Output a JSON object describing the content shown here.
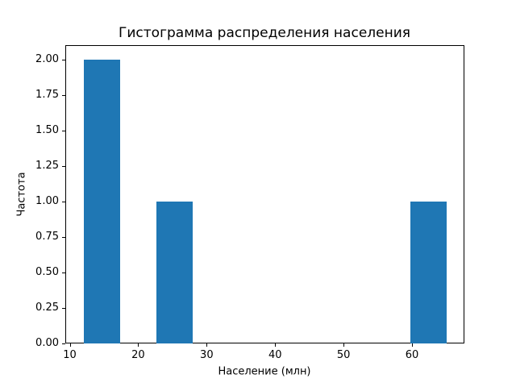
{
  "chart_data": {
    "type": "bar",
    "subtype": "histogram",
    "title": "Гистограмма распределения населения",
    "xlabel": "Население (млн)",
    "ylabel": "Частота",
    "bin_edges": [
      12,
      17.3,
      22.6,
      27.9,
      33.2,
      38.5,
      43.8,
      49.1,
      54.4,
      59.7,
      65
    ],
    "counts": [
      2,
      0,
      1,
      0,
      0,
      0,
      0,
      0,
      0,
      1
    ],
    "xlim": [
      9.35,
      67.65
    ],
    "ylim": [
      0,
      2.1
    ],
    "xticks": [
      10,
      20,
      30,
      40,
      50,
      60
    ],
    "xtick_labels": [
      "10",
      "20",
      "30",
      "40",
      "50",
      "60"
    ],
    "yticks": [
      0,
      0.25,
      0.5,
      0.75,
      1.0,
      1.25,
      1.5,
      1.75,
      2.0
    ],
    "ytick_labels": [
      "0.00",
      "0.25",
      "0.50",
      "0.75",
      "1.00",
      "1.25",
      "1.50",
      "1.75",
      "2.00"
    ],
    "bar_color": "#1f77b4",
    "text_color": "#000000",
    "background_color": "#ffffff",
    "grid": false,
    "legend": null
  }
}
